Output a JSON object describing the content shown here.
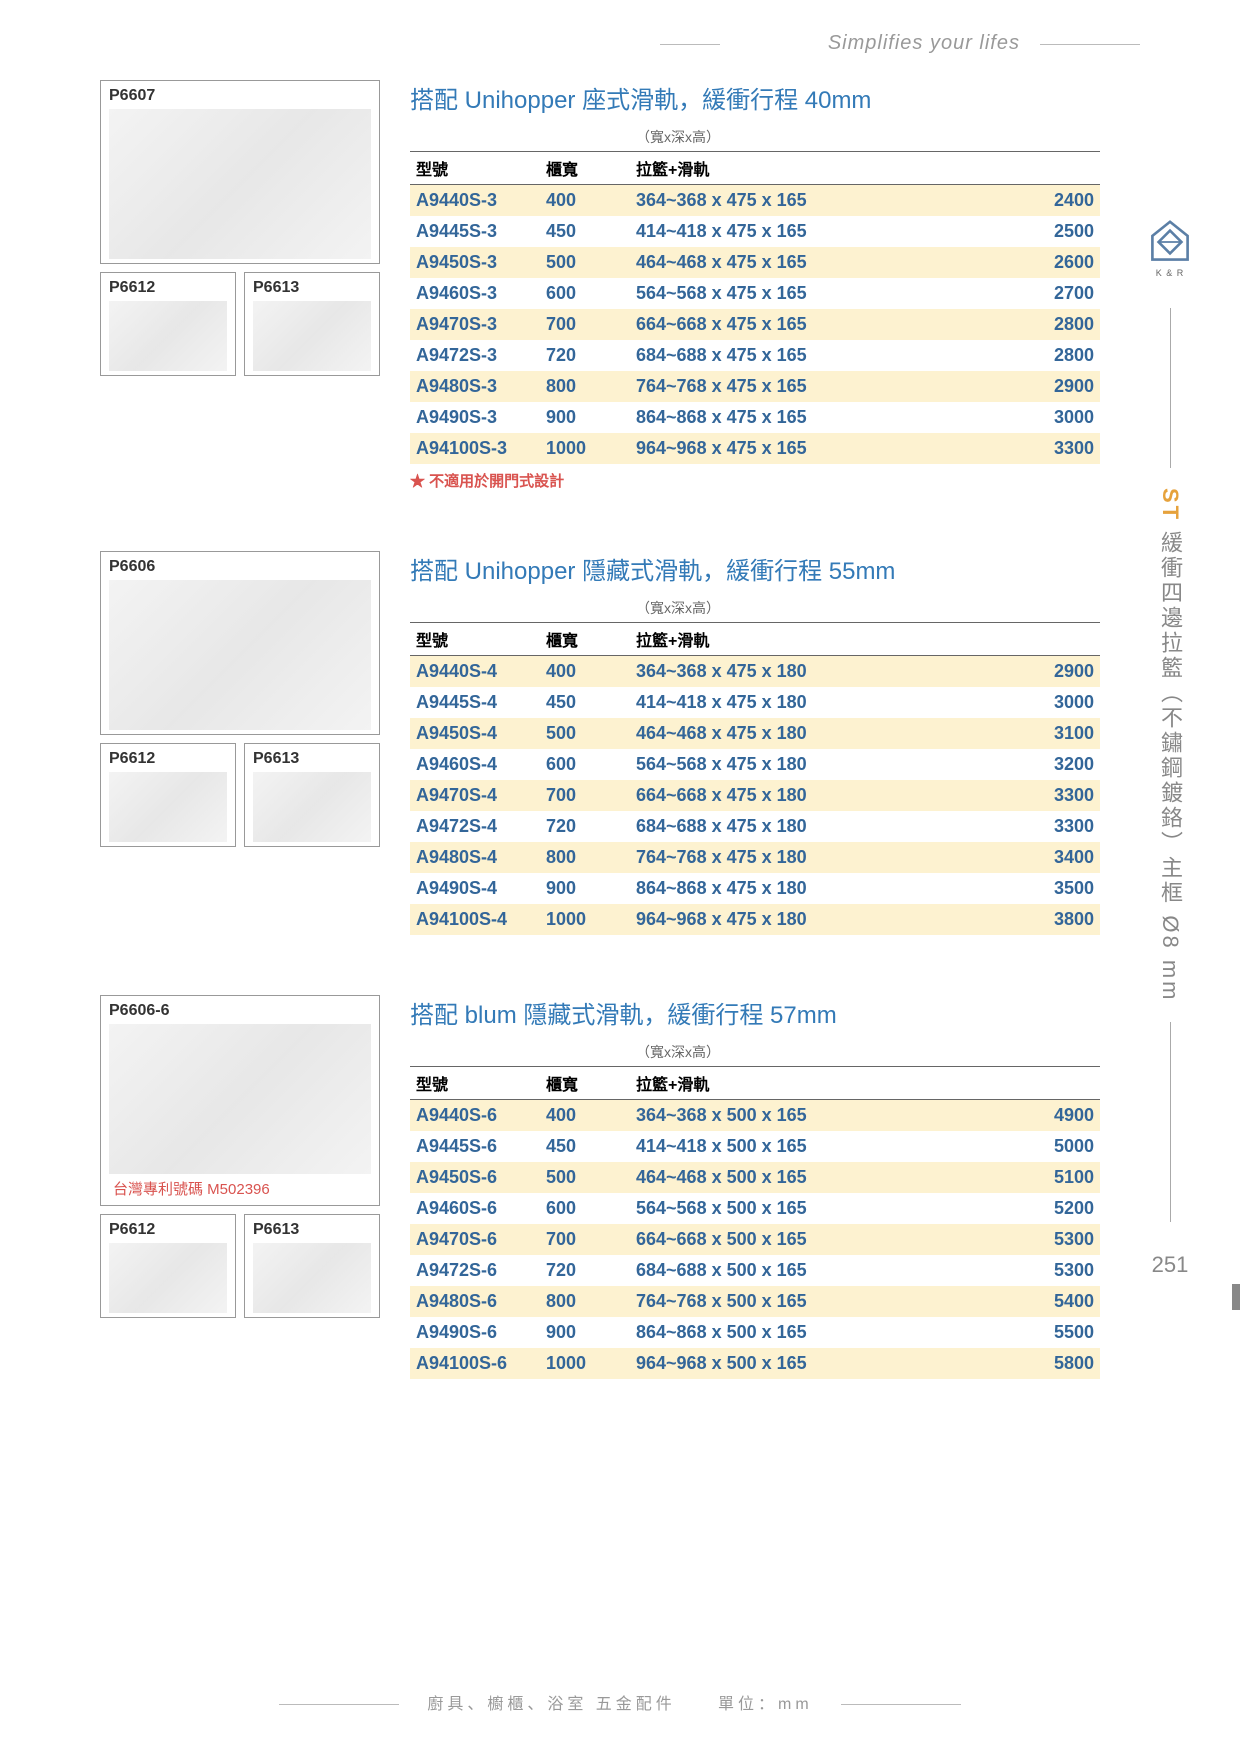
{
  "tagline": "Simplifies your lifes",
  "sidebar": {
    "logo_text": "K & R",
    "vertical_prefix": "ST",
    "vertical_text": "緩衝四邊拉籃（不鏽鋼鍍鉻）主框 Ø8 mm",
    "page_number": "251"
  },
  "footer": {
    "left": "廚具、櫥櫃、浴室 五金配件",
    "right": "單位：mm"
  },
  "sections": [
    {
      "title": "搭配 Unihopper 座式滑軌，緩衝行程 40mm",
      "main_img": "P6607",
      "sub_imgs": [
        "P6612",
        "P6613"
      ],
      "headers": {
        "c1": "型號",
        "c2": "櫃寬",
        "c3": "拉籃+滑軌",
        "c3_sub": "（寬x深x高）"
      },
      "note": "★ 不適用於開門式設計",
      "rows": [
        {
          "m": "A9440S-3",
          "w": "400",
          "d": "364~368 x 475 x 165",
          "p": "2400",
          "hl": true
        },
        {
          "m": "A9445S-3",
          "w": "450",
          "d": "414~418 x 475 x 165",
          "p": "2500",
          "hl": false
        },
        {
          "m": "A9450S-3",
          "w": "500",
          "d": "464~468 x 475 x 165",
          "p": "2600",
          "hl": true
        },
        {
          "m": "A9460S-3",
          "w": "600",
          "d": "564~568 x 475 x 165",
          "p": "2700",
          "hl": false
        },
        {
          "m": "A9470S-3",
          "w": "700",
          "d": "664~668 x 475 x 165",
          "p": "2800",
          "hl": true
        },
        {
          "m": "A9472S-3",
          "w": "720",
          "d": "684~688 x 475 x 165",
          "p": "2800",
          "hl": false
        },
        {
          "m": "A9480S-3",
          "w": "800",
          "d": "764~768 x 475 x 165",
          "p": "2900",
          "hl": true
        },
        {
          "m": "A9490S-3",
          "w": "900",
          "d": "864~868 x 475 x 165",
          "p": "3000",
          "hl": false
        },
        {
          "m": "A94100S-3",
          "w": "1000",
          "d": "964~968 x 475 x 165",
          "p": "3300",
          "hl": true
        }
      ]
    },
    {
      "title": "搭配 Unihopper 隱藏式滑軌，緩衝行程 55mm",
      "main_img": "P6606",
      "sub_imgs": [
        "P6612",
        "P6613"
      ],
      "headers": {
        "c1": "型號",
        "c2": "櫃寬",
        "c3": "拉籃+滑軌",
        "c3_sub": "（寬x深x高）"
      },
      "rows": [
        {
          "m": "A9440S-4",
          "w": "400",
          "d": "364~368 x 475 x 180",
          "p": "2900",
          "hl": true
        },
        {
          "m": "A9445S-4",
          "w": "450",
          "d": "414~418 x 475 x 180",
          "p": "3000",
          "hl": false
        },
        {
          "m": "A9450S-4",
          "w": "500",
          "d": "464~468 x 475 x 180",
          "p": "3100",
          "hl": true
        },
        {
          "m": "A9460S-4",
          "w": "600",
          "d": "564~568 x 475 x 180",
          "p": "3200",
          "hl": false
        },
        {
          "m": "A9470S-4",
          "w": "700",
          "d": "664~668 x 475 x 180",
          "p": "3300",
          "hl": true
        },
        {
          "m": "A9472S-4",
          "w": "720",
          "d": "684~688 x 475 x 180",
          "p": "3300",
          "hl": false
        },
        {
          "m": "A9480S-4",
          "w": "800",
          "d": "764~768 x 475 x 180",
          "p": "3400",
          "hl": true
        },
        {
          "m": "A9490S-4",
          "w": "900",
          "d": "864~868 x 475 x 180",
          "p": "3500",
          "hl": false
        },
        {
          "m": "A94100S-4",
          "w": "1000",
          "d": "964~968 x 475 x 180",
          "p": "3800",
          "hl": true
        }
      ]
    },
    {
      "title": "搭配 blum 隱藏式滑軌，緩衝行程 57mm",
      "main_img": "P6606-6",
      "patent": "台灣專利號碼  M502396",
      "sub_imgs": [
        "P6612",
        "P6613"
      ],
      "headers": {
        "c1": "型號",
        "c2": "櫃寬",
        "c3": "拉籃+滑軌",
        "c3_sub": "（寬x深x高）"
      },
      "rows": [
        {
          "m": "A9440S-6",
          "w": "400",
          "d": "364~368 x 500 x 165",
          "p": "4900",
          "hl": true
        },
        {
          "m": "A9445S-6",
          "w": "450",
          "d": "414~418 x 500 x 165",
          "p": "5000",
          "hl": false
        },
        {
          "m": "A9450S-6",
          "w": "500",
          "d": "464~468 x 500 x 165",
          "p": "5100",
          "hl": true
        },
        {
          "m": "A9460S-6",
          "w": "600",
          "d": "564~568 x 500 x 165",
          "p": "5200",
          "hl": false
        },
        {
          "m": "A9470S-6",
          "w": "700",
          "d": "664~668 x 500 x 165",
          "p": "5300",
          "hl": true
        },
        {
          "m": "A9472S-6",
          "w": "720",
          "d": "684~688 x 500 x 165",
          "p": "5300",
          "hl": false
        },
        {
          "m": "A9480S-6",
          "w": "800",
          "d": "764~768 x 500 x 165",
          "p": "5400",
          "hl": true
        },
        {
          "m": "A9490S-6",
          "w": "900",
          "d": "864~868 x 500 x 165",
          "p": "5500",
          "hl": false
        },
        {
          "m": "A94100S-6",
          "w": "1000",
          "d": "964~968 x 500 x 165",
          "p": "5800",
          "hl": true
        }
      ]
    }
  ]
}
